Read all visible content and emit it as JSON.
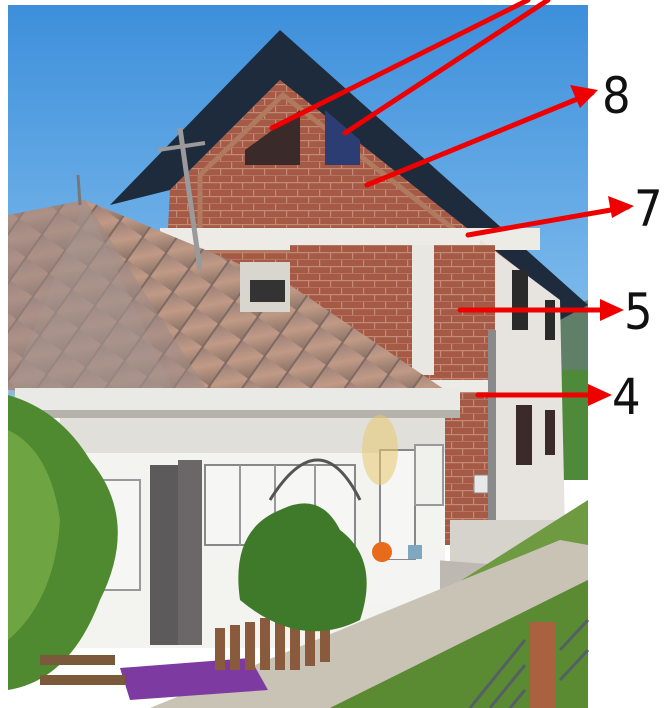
{
  "annotations": [
    {
      "label": "8"
    },
    {
      "label": "7"
    },
    {
      "label": "5"
    },
    {
      "label": "4"
    }
  ],
  "colors": {
    "sky": "#4f9fe0",
    "arrow": "#ee0000",
    "brick": "#a55a45",
    "rusty_roof": "#b08a78",
    "white_wall": "#f2f2f2",
    "grass": "#4a8a2e"
  }
}
